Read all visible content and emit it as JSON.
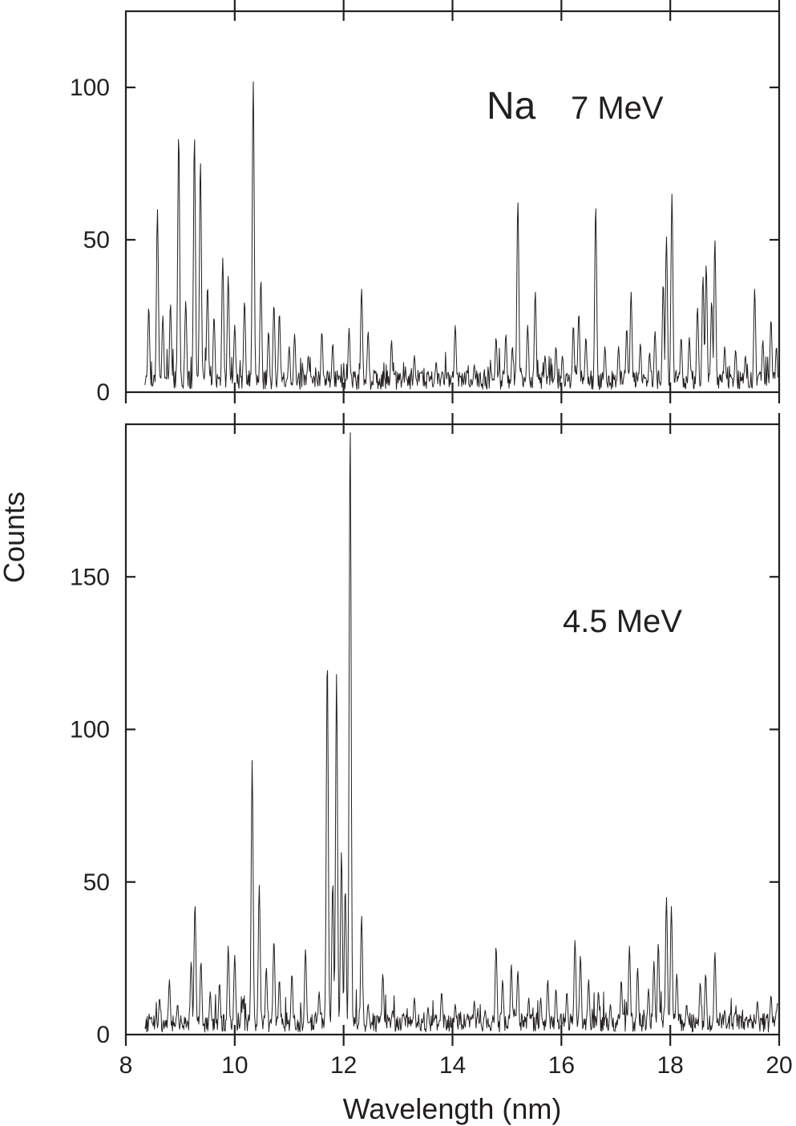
{
  "chart_data": [
    {
      "type": "line",
      "panel": "top",
      "element": "Na",
      "energy_label": "7 MeV",
      "xlabel": "",
      "ylabel": "",
      "xlim": [
        8,
        20
      ],
      "ylim": [
        0,
        125
      ],
      "xticks": [
        8,
        10,
        12,
        14,
        16,
        18,
        20
      ],
      "yticks": [
        0,
        50,
        100
      ],
      "ytick_labels": [
        "0",
        "50",
        "100"
      ],
      "grid": false,
      "baseline_level": 4,
      "peaks": [
        {
          "x": 8.42,
          "y": 28
        },
        {
          "x": 8.58,
          "y": 60
        },
        {
          "x": 8.68,
          "y": 25
        },
        {
          "x": 8.82,
          "y": 29
        },
        {
          "x": 8.97,
          "y": 85
        },
        {
          "x": 9.1,
          "y": 30
        },
        {
          "x": 9.26,
          "y": 84
        },
        {
          "x": 9.37,
          "y": 76
        },
        {
          "x": 9.5,
          "y": 35
        },
        {
          "x": 9.62,
          "y": 25
        },
        {
          "x": 9.78,
          "y": 44
        },
        {
          "x": 9.88,
          "y": 38
        },
        {
          "x": 10.0,
          "y": 22
        },
        {
          "x": 10.18,
          "y": 30
        },
        {
          "x": 10.34,
          "y": 102
        },
        {
          "x": 10.48,
          "y": 37
        },
        {
          "x": 10.62,
          "y": 20
        },
        {
          "x": 10.72,
          "y": 29
        },
        {
          "x": 10.82,
          "y": 26
        },
        {
          "x": 11.0,
          "y": 15
        },
        {
          "x": 11.1,
          "y": 19
        },
        {
          "x": 11.35,
          "y": 12
        },
        {
          "x": 11.6,
          "y": 20
        },
        {
          "x": 11.8,
          "y": 16
        },
        {
          "x": 12.1,
          "y": 21
        },
        {
          "x": 12.33,
          "y": 34
        },
        {
          "x": 12.45,
          "y": 20
        },
        {
          "x": 12.88,
          "y": 17
        },
        {
          "x": 13.3,
          "y": 12
        },
        {
          "x": 13.7,
          "y": 10
        },
        {
          "x": 14.05,
          "y": 22
        },
        {
          "x": 14.4,
          "y": 9
        },
        {
          "x": 14.8,
          "y": 18
        },
        {
          "x": 14.98,
          "y": 19
        },
        {
          "x": 15.1,
          "y": 15
        },
        {
          "x": 15.2,
          "y": 63
        },
        {
          "x": 15.38,
          "y": 22
        },
        {
          "x": 15.52,
          "y": 33
        },
        {
          "x": 15.7,
          "y": 12
        },
        {
          "x": 15.9,
          "y": 15
        },
        {
          "x": 16.02,
          "y": 12
        },
        {
          "x": 16.22,
          "y": 22
        },
        {
          "x": 16.32,
          "y": 26
        },
        {
          "x": 16.45,
          "y": 18
        },
        {
          "x": 16.63,
          "y": 61
        },
        {
          "x": 16.8,
          "y": 15
        },
        {
          "x": 17.05,
          "y": 15
        },
        {
          "x": 17.2,
          "y": 21
        },
        {
          "x": 17.28,
          "y": 33
        },
        {
          "x": 17.45,
          "y": 16
        },
        {
          "x": 17.62,
          "y": 13
        },
        {
          "x": 17.72,
          "y": 20
        },
        {
          "x": 17.87,
          "y": 36
        },
        {
          "x": 17.93,
          "y": 51
        },
        {
          "x": 18.03,
          "y": 65
        },
        {
          "x": 18.2,
          "y": 18
        },
        {
          "x": 18.35,
          "y": 18
        },
        {
          "x": 18.5,
          "y": 28
        },
        {
          "x": 18.6,
          "y": 38
        },
        {
          "x": 18.66,
          "y": 42
        },
        {
          "x": 18.76,
          "y": 30
        },
        {
          "x": 18.82,
          "y": 50
        },
        {
          "x": 19.0,
          "y": 15
        },
        {
          "x": 19.2,
          "y": 14
        },
        {
          "x": 19.38,
          "y": 12
        },
        {
          "x": 19.55,
          "y": 34
        },
        {
          "x": 19.7,
          "y": 17
        },
        {
          "x": 19.85,
          "y": 24
        },
        {
          "x": 19.95,
          "y": 15
        }
      ]
    },
    {
      "type": "line",
      "panel": "bottom",
      "energy_label": "4.5 MeV",
      "xlabel": "Wavelength (nm)",
      "ylabel": "Counts",
      "xlim": [
        8,
        20
      ],
      "ylim": [
        0,
        200
      ],
      "xticks": [
        8,
        10,
        12,
        14,
        16,
        18,
        20
      ],
      "xtick_labels": [
        "8",
        "10",
        "12",
        "14",
        "16",
        "18",
        "20"
      ],
      "yticks": [
        0,
        50,
        100,
        150
      ],
      "ytick_labels": [
        "0",
        "50",
        "100",
        "150"
      ],
      "grid": false,
      "baseline_level": 4,
      "peaks": [
        {
          "x": 8.45,
          "y": 5
        },
        {
          "x": 8.62,
          "y": 12
        },
        {
          "x": 8.8,
          "y": 18
        },
        {
          "x": 8.95,
          "y": 10
        },
        {
          "x": 9.2,
          "y": 24
        },
        {
          "x": 9.27,
          "y": 43
        },
        {
          "x": 9.38,
          "y": 24
        },
        {
          "x": 9.55,
          "y": 14
        },
        {
          "x": 9.72,
          "y": 17
        },
        {
          "x": 9.88,
          "y": 29
        },
        {
          "x": 10.0,
          "y": 26
        },
        {
          "x": 10.15,
          "y": 12
        },
        {
          "x": 10.32,
          "y": 90
        },
        {
          "x": 10.45,
          "y": 49
        },
        {
          "x": 10.58,
          "y": 22
        },
        {
          "x": 10.72,
          "y": 31
        },
        {
          "x": 10.82,
          "y": 18
        },
        {
          "x": 11.05,
          "y": 20
        },
        {
          "x": 11.3,
          "y": 28
        },
        {
          "x": 11.55,
          "y": 14
        },
        {
          "x": 11.7,
          "y": 124
        },
        {
          "x": 11.8,
          "y": 50
        },
        {
          "x": 11.87,
          "y": 118
        },
        {
          "x": 11.96,
          "y": 60
        },
        {
          "x": 12.03,
          "y": 48
        },
        {
          "x": 12.12,
          "y": 200
        },
        {
          "x": 12.33,
          "y": 39
        },
        {
          "x": 12.45,
          "y": 10
        },
        {
          "x": 12.72,
          "y": 20
        },
        {
          "x": 12.9,
          "y": 8
        },
        {
          "x": 13.1,
          "y": 7
        },
        {
          "x": 13.3,
          "y": 12
        },
        {
          "x": 13.55,
          "y": 9
        },
        {
          "x": 13.8,
          "y": 14
        },
        {
          "x": 14.05,
          "y": 10
        },
        {
          "x": 14.4,
          "y": 11
        },
        {
          "x": 14.6,
          "y": 8
        },
        {
          "x": 14.8,
          "y": 29
        },
        {
          "x": 14.92,
          "y": 18
        },
        {
          "x": 15.08,
          "y": 23
        },
        {
          "x": 15.2,
          "y": 21
        },
        {
          "x": 15.4,
          "y": 12
        },
        {
          "x": 15.62,
          "y": 12
        },
        {
          "x": 15.75,
          "y": 18
        },
        {
          "x": 15.9,
          "y": 15
        },
        {
          "x": 16.1,
          "y": 14
        },
        {
          "x": 16.25,
          "y": 31
        },
        {
          "x": 16.35,
          "y": 26
        },
        {
          "x": 16.5,
          "y": 18
        },
        {
          "x": 16.68,
          "y": 14
        },
        {
          "x": 16.9,
          "y": 10
        },
        {
          "x": 17.1,
          "y": 18
        },
        {
          "x": 17.25,
          "y": 29
        },
        {
          "x": 17.4,
          "y": 22
        },
        {
          "x": 17.6,
          "y": 15
        },
        {
          "x": 17.7,
          "y": 24
        },
        {
          "x": 17.78,
          "y": 30
        },
        {
          "x": 17.93,
          "y": 45
        },
        {
          "x": 18.02,
          "y": 42
        },
        {
          "x": 18.12,
          "y": 20
        },
        {
          "x": 18.3,
          "y": 10
        },
        {
          "x": 18.55,
          "y": 17
        },
        {
          "x": 18.65,
          "y": 20
        },
        {
          "x": 18.82,
          "y": 27
        },
        {
          "x": 19.0,
          "y": 8
        },
        {
          "x": 19.2,
          "y": 7
        },
        {
          "x": 19.4,
          "y": 6
        },
        {
          "x": 19.6,
          "y": 11
        },
        {
          "x": 19.85,
          "y": 13
        },
        {
          "x": 19.95,
          "y": 8
        }
      ]
    }
  ]
}
